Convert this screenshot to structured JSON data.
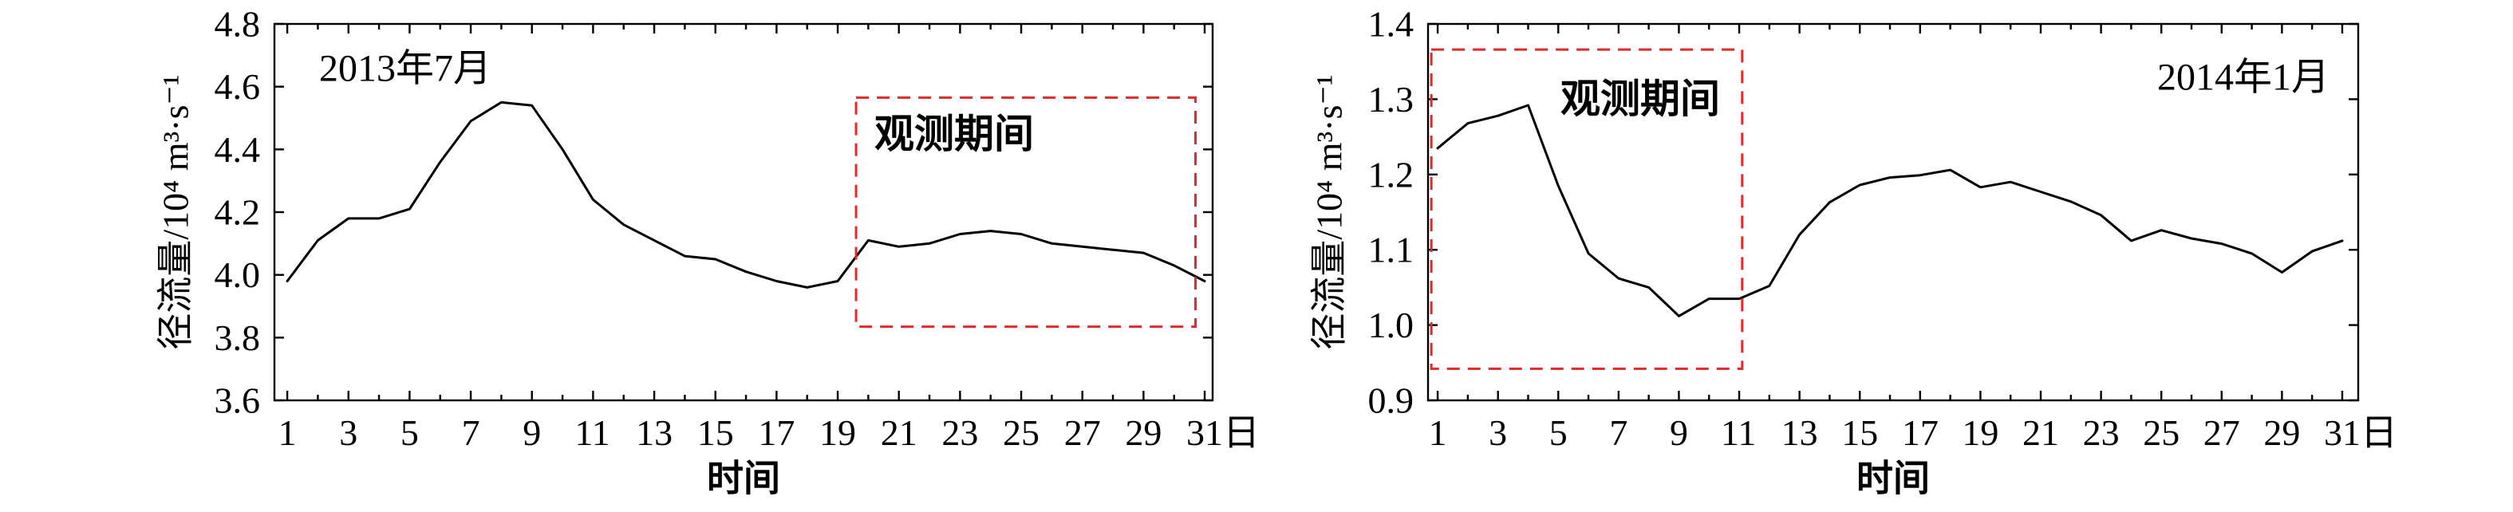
{
  "chart_data": [
    {
      "type": "line",
      "annotation": "2013年7月",
      "highlight_label": "观测期间",
      "xlabel": "时间",
      "ylabel": "径流量/10⁴ m³·s⁻¹",
      "x": [
        1,
        2,
        3,
        4,
        5,
        6,
        7,
        8,
        9,
        10,
        11,
        12,
        13,
        14,
        15,
        16,
        17,
        18,
        19,
        20,
        21,
        22,
        23,
        24,
        25,
        26,
        27,
        28,
        29,
        30,
        31
      ],
      "series": [
        {
          "values": [
            3.98,
            4.11,
            4.18,
            4.18,
            4.21,
            4.36,
            4.49,
            4.55,
            4.54,
            4.4,
            4.24,
            4.16,
            4.11,
            4.06,
            4.05,
            4.01,
            3.98,
            3.96,
            3.98,
            4.11,
            4.09,
            4.1,
            4.13,
            4.14,
            4.13,
            4.1,
            4.09,
            4.08,
            4.07,
            4.03,
            3.98
          ]
        }
      ],
      "x_ticks": [
        1,
        3,
        5,
        7,
        9,
        11,
        13,
        15,
        17,
        19,
        21,
        23,
        25,
        27,
        29,
        31
      ],
      "x_tick_labels": [
        "1",
        "3",
        "5",
        "7",
        "9",
        "11",
        "13",
        "15",
        "17",
        "19",
        "21",
        "23",
        "25",
        "27",
        "29",
        "31日"
      ],
      "y_ticks": [
        3.6,
        3.8,
        4.0,
        4.2,
        4.4,
        4.6,
        4.8
      ],
      "y_tick_labels": [
        "3.6",
        "3.8",
        "4.0",
        "4.2",
        "4.4",
        "4.6",
        "4.8"
      ],
      "xlim": [
        0.58,
        31.26
      ],
      "ylim": [
        3.6,
        4.8
      ],
      "grid": false,
      "line_color": "#000000",
      "highlight_color": "#e0292b"
    },
    {
      "type": "line",
      "annotation": "2014年1月",
      "highlight_label": "观测期间",
      "xlabel": "时间",
      "ylabel": "径流量/10⁴ m³·s⁻¹",
      "x": [
        1,
        2,
        3,
        4,
        5,
        6,
        7,
        8,
        9,
        10,
        11,
        12,
        13,
        14,
        15,
        16,
        17,
        18,
        19,
        20,
        21,
        22,
        23,
        24,
        25,
        26,
        27,
        28,
        29,
        30,
        31
      ],
      "series": [
        {
          "values": [
            1.235,
            1.268,
            1.278,
            1.292,
            1.185,
            1.095,
            1.062,
            1.05,
            1.012,
            1.035,
            1.035,
            1.052,
            1.12,
            1.163,
            1.186,
            1.196,
            1.199,
            1.206,
            1.183,
            1.19,
            1.177,
            1.164,
            1.146,
            1.112,
            1.126,
            1.115,
            1.108,
            1.095,
            1.07,
            1.098,
            1.112
          ]
        }
      ],
      "x_ticks": [
        1,
        3,
        5,
        7,
        9,
        11,
        13,
        15,
        17,
        19,
        21,
        23,
        25,
        27,
        29,
        31
      ],
      "x_tick_labels": [
        "1",
        "3",
        "5",
        "7",
        "9",
        "11",
        "13",
        "15",
        "17",
        "19",
        "21",
        "23",
        "25",
        "27",
        "29",
        "31日"
      ],
      "y_ticks": [
        0.9,
        1.0,
        1.1,
        1.2,
        1.3,
        1.4
      ],
      "y_tick_labels": [
        "0.9",
        "1.0",
        "1.1",
        "1.2",
        "1.3",
        "1.4"
      ],
      "xlim": [
        0.68,
        31.53
      ],
      "ylim": [
        0.9,
        1.4
      ],
      "grid": false,
      "line_color": "#000000",
      "highlight_color": "#e0292b"
    }
  ]
}
